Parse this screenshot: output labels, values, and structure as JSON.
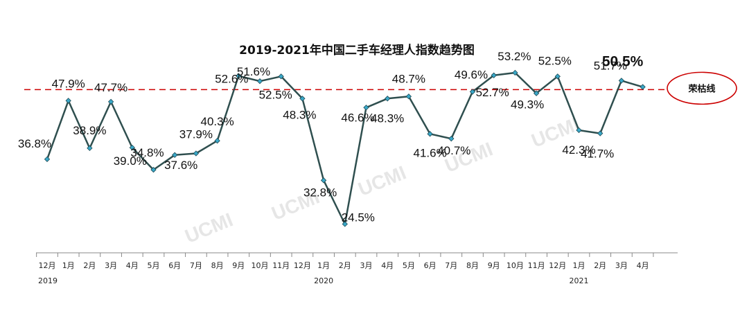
{
  "chart_data": {
    "type": "line",
    "title": "2019-2021年中国二手车经理人指数趋势图",
    "x": [
      "12月",
      "1月",
      "2月",
      "3月",
      "4月",
      "5月",
      "6月",
      "7月",
      "8月",
      "9月",
      "10月",
      "11月",
      "12月",
      "1月",
      "2月",
      "3月",
      "4月",
      "5月",
      "6月",
      "7月",
      "8月",
      "9月",
      "10月",
      "11月",
      "12月",
      "1月",
      "2月",
      "3月",
      "4月"
    ],
    "years": [
      {
        "label": "2019",
        "at_index": 0
      },
      {
        "label": "2020",
        "at_index": 13
      },
      {
        "label": "2021",
        "at_index": 25
      }
    ],
    "series": [
      {
        "values": [
          36.8,
          47.9,
          38.9,
          47.7,
          39.0,
          34.8,
          37.6,
          37.9,
          40.3,
          52.6,
          51.6,
          52.5,
          48.3,
          32.8,
          24.5,
          46.6,
          48.3,
          48.7,
          41.6,
          40.7,
          49.6,
          52.7,
          53.2,
          49.3,
          52.5,
          42.3,
          41.7,
          51.7,
          50.5
        ]
      }
    ],
    "data_labels": [
      "36.8%",
      "47.9%",
      "38.9%",
      "47.7%",
      "39.0%",
      "34.8%",
      "37.6%",
      "37.9%",
      "40.3%",
      "52.6%",
      "51.6%",
      "52.5%",
      "48.3%",
      "32.8%",
      "24.5%",
      "46.6%",
      "48.3%",
      "48.7%",
      "41.6%",
      "40.7%",
      "49.6%",
      "52.7%",
      "53.2%",
      "49.3%",
      "52.5%",
      "42.3%",
      "41.7%",
      "51.7%",
      "50.5%"
    ],
    "reference_line": {
      "value": 50,
      "label": "荣枯线",
      "color": "#cc0000"
    },
    "ylim": [
      18,
      62
    ],
    "line_color": "#2f4f4f",
    "marker_color": "#3aa8c8",
    "watermark": "UCMI",
    "grid": false,
    "legend": "none"
  }
}
